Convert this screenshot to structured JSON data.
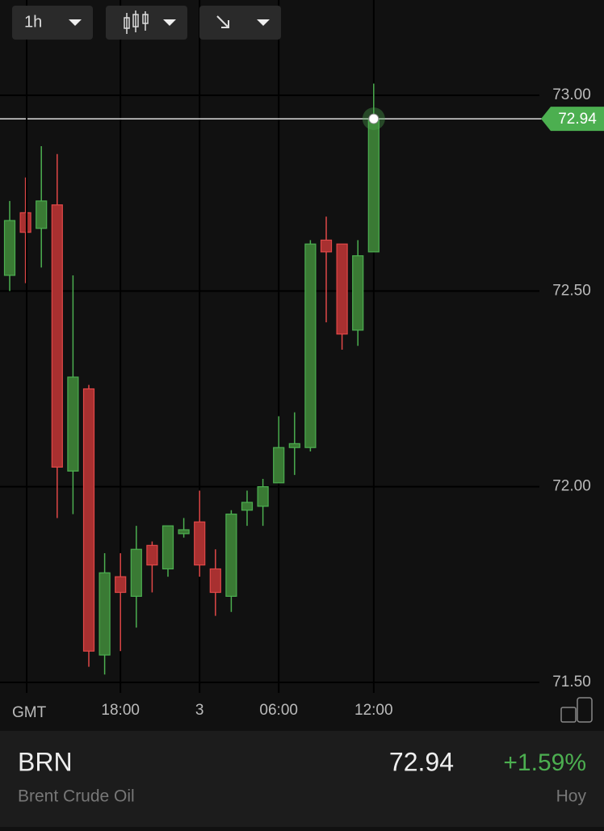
{
  "toolbar": {
    "interval": "1h"
  },
  "chart_data": {
    "type": "candlestick",
    "x_label": "GMT",
    "categories": [
      null,
      null,
      null,
      null,
      null,
      null,
      null,
      "18:00",
      null,
      null,
      null,
      null,
      "3",
      null,
      null,
      null,
      null,
      "06:00",
      null,
      null,
      null,
      null,
      null,
      "12:00"
    ],
    "open": [
      72.54,
      72.7,
      72.66,
      72.72,
      72.04,
      72.25,
      71.57,
      71.77,
      71.72,
      71.85,
      71.79,
      71.88,
      71.91,
      71.79,
      71.72,
      71.94,
      71.95,
      72.01,
      72.1,
      72.1,
      72.63,
      72.62,
      72.4,
      72.6
    ],
    "high": [
      72.73,
      72.79,
      72.87,
      72.85,
      72.54,
      72.26,
      71.83,
      71.83,
      71.9,
      71.86,
      71.9,
      71.92,
      71.99,
      71.84,
      71.94,
      71.99,
      72.02,
      72.18,
      72.19,
      72.63,
      72.69,
      72.62,
      72.63,
      73.03
    ],
    "low": [
      72.5,
      72.52,
      72.56,
      71.92,
      71.93,
      71.54,
      71.52,
      71.58,
      71.64,
      71.73,
      71.77,
      71.87,
      71.77,
      71.67,
      71.68,
      71.9,
      71.9,
      72.01,
      72.03,
      72.09,
      72.42,
      72.35,
      72.36,
      72.6
    ],
    "close": [
      72.68,
      72.65,
      72.73,
      72.05,
      72.28,
      71.58,
      71.78,
      71.73,
      71.84,
      71.8,
      71.9,
      71.89,
      71.8,
      71.73,
      71.93,
      71.96,
      72.0,
      72.1,
      72.11,
      72.62,
      72.6,
      72.39,
      72.59,
      72.94
    ],
    "up_color": "#4caf50",
    "down_color": "#e04848",
    "ylim": [
      71.5,
      73.13
    ],
    "yticks": [
      {
        "value": 71.5,
        "label": "71.50"
      },
      {
        "value": 72,
        "label": "72.00"
      },
      {
        "value": 72.5,
        "label": "72.50"
      },
      {
        "value": 73,
        "label": "73.00"
      }
    ],
    "grid": true,
    "last_price": 72.94,
    "last_price_label": "72.94"
  },
  "footer": {
    "symbol": "BRN",
    "name": "Brent Crude Oil",
    "price": "72.94",
    "change": "+1.59%",
    "period": "Hoy"
  }
}
